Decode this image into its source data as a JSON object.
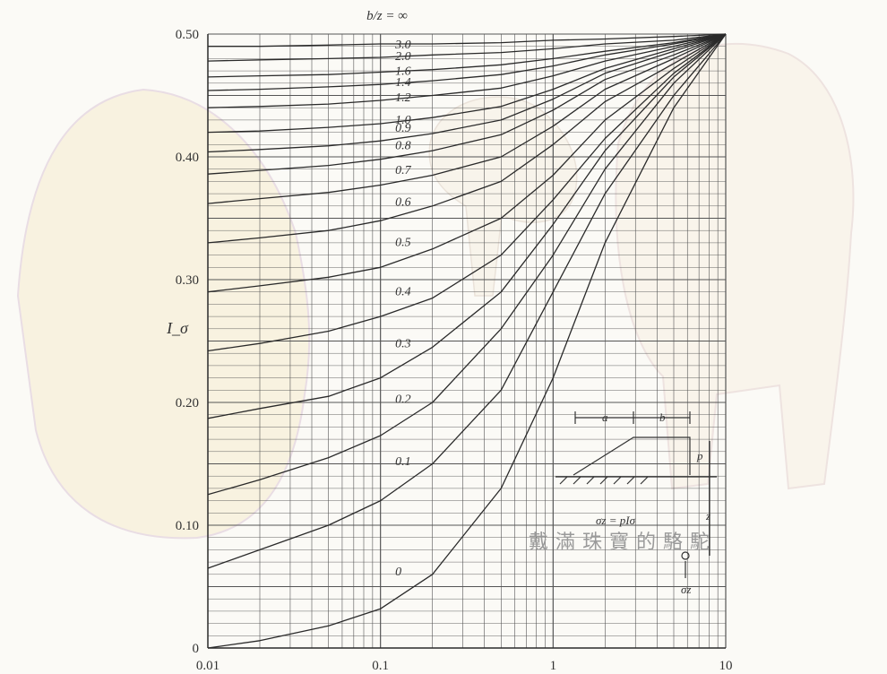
{
  "chart_data": {
    "type": "line",
    "title": "b/z = ∞",
    "ylabel": "I_σ",
    "xlabel": "",
    "x_scale": "log",
    "xlim": [
      0.01,
      10
    ],
    "ylim": [
      0,
      0.5
    ],
    "x_ticks": [
      "0.01",
      "0.1",
      "1",
      "10"
    ],
    "y_ticks": [
      "0",
      "0.10",
      "0.20",
      "0.30",
      "0.40",
      "0.50"
    ],
    "grid": true,
    "series": [
      {
        "name": "0",
        "x": [
          0.01,
          0.02,
          0.05,
          0.1,
          0.2,
          0.5,
          1,
          2,
          5,
          10
        ],
        "y": [
          0.0,
          0.006,
          0.018,
          0.032,
          0.06,
          0.13,
          0.22,
          0.33,
          0.44,
          0.5
        ]
      },
      {
        "name": "0.1",
        "x": [
          0.01,
          0.02,
          0.05,
          0.1,
          0.2,
          0.5,
          1,
          2,
          5,
          10
        ],
        "y": [
          0.065,
          0.08,
          0.1,
          0.12,
          0.15,
          0.21,
          0.29,
          0.37,
          0.45,
          0.5
        ]
      },
      {
        "name": "0.2",
        "x": [
          0.01,
          0.02,
          0.05,
          0.1,
          0.2,
          0.5,
          1,
          2,
          5,
          10
        ],
        "y": [
          0.125,
          0.137,
          0.155,
          0.173,
          0.2,
          0.26,
          0.32,
          0.39,
          0.46,
          0.5
        ]
      },
      {
        "name": "0.3",
        "x": [
          0.01,
          0.02,
          0.05,
          0.1,
          0.2,
          0.5,
          1,
          2,
          5,
          10
        ],
        "y": [
          0.187,
          0.195,
          0.205,
          0.22,
          0.245,
          0.29,
          0.345,
          0.405,
          0.465,
          0.5
        ]
      },
      {
        "name": "0.4",
        "x": [
          0.01,
          0.02,
          0.05,
          0.1,
          0.2,
          0.5,
          1,
          2,
          5,
          10
        ],
        "y": [
          0.242,
          0.248,
          0.258,
          0.27,
          0.285,
          0.32,
          0.365,
          0.415,
          0.468,
          0.5
        ]
      },
      {
        "name": "0.5",
        "x": [
          0.01,
          0.02,
          0.05,
          0.1,
          0.2,
          0.5,
          1,
          2,
          5,
          10
        ],
        "y": [
          0.29,
          0.295,
          0.302,
          0.31,
          0.325,
          0.35,
          0.385,
          0.43,
          0.472,
          0.5
        ]
      },
      {
        "name": "0.6",
        "x": [
          0.01,
          0.02,
          0.05,
          0.1,
          0.2,
          0.5,
          1,
          2,
          5,
          10
        ],
        "y": [
          0.33,
          0.334,
          0.34,
          0.348,
          0.36,
          0.38,
          0.41,
          0.445,
          0.476,
          0.5
        ]
      },
      {
        "name": "0.7",
        "x": [
          0.01,
          0.02,
          0.05,
          0.1,
          0.2,
          0.5,
          1,
          2,
          5,
          10
        ],
        "y": [
          0.362,
          0.366,
          0.371,
          0.377,
          0.385,
          0.4,
          0.425,
          0.455,
          0.48,
          0.5
        ]
      },
      {
        "name": "0.8",
        "x": [
          0.01,
          0.02,
          0.05,
          0.1,
          0.2,
          0.5,
          1,
          2,
          5,
          10
        ],
        "y": [
          0.386,
          0.389,
          0.393,
          0.398,
          0.405,
          0.418,
          0.438,
          0.463,
          0.483,
          0.5
        ]
      },
      {
        "name": "0.9",
        "x": [
          0.01,
          0.02,
          0.05,
          0.1,
          0.2,
          0.5,
          1,
          2,
          5,
          10
        ],
        "y": [
          0.404,
          0.406,
          0.409,
          0.413,
          0.419,
          0.43,
          0.447,
          0.468,
          0.486,
          0.5
        ]
      },
      {
        "name": "1.0",
        "x": [
          0.01,
          0.02,
          0.05,
          0.1,
          0.2,
          0.5,
          1,
          2,
          5,
          10
        ],
        "y": [
          0.42,
          0.421,
          0.424,
          0.427,
          0.432,
          0.441,
          0.455,
          0.472,
          0.488,
          0.5
        ]
      },
      {
        "name": "1.2",
        "x": [
          0.01,
          0.02,
          0.05,
          0.1,
          0.2,
          0.5,
          1,
          2,
          5,
          10
        ],
        "y": [
          0.44,
          0.441,
          0.443,
          0.446,
          0.45,
          0.456,
          0.466,
          0.478,
          0.49,
          0.5
        ]
      },
      {
        "name": "1.4",
        "x": [
          0.01,
          0.02,
          0.05,
          0.1,
          0.2,
          0.5,
          1,
          2,
          5,
          10
        ],
        "y": [
          0.454,
          0.455,
          0.457,
          0.459,
          0.462,
          0.467,
          0.474,
          0.483,
          0.492,
          0.5
        ]
      },
      {
        "name": "1.6",
        "x": [
          0.01,
          0.02,
          0.05,
          0.1,
          0.2,
          0.5,
          1,
          2,
          5,
          10
        ],
        "y": [
          0.465,
          0.466,
          0.467,
          0.469,
          0.471,
          0.475,
          0.48,
          0.486,
          0.493,
          0.5
        ]
      },
      {
        "name": "2.0",
        "x": [
          0.01,
          0.02,
          0.05,
          0.1,
          0.2,
          0.5,
          1,
          2,
          5,
          10
        ],
        "y": [
          0.478,
          0.479,
          0.48,
          0.481,
          0.483,
          0.485,
          0.488,
          0.492,
          0.495,
          0.5
        ]
      },
      {
        "name": "3.0",
        "x": [
          0.01,
          0.02,
          0.05,
          0.1,
          0.2,
          0.5,
          1,
          2,
          5,
          10
        ],
        "y": [
          0.49,
          0.49,
          0.491,
          0.492,
          0.492,
          0.493,
          0.495,
          0.496,
          0.498,
          0.5
        ]
      }
    ],
    "inset": {
      "labels": {
        "a": "a",
        "b": "b",
        "p": "p",
        "z": "z",
        "sigma_z": "σz"
      },
      "formula": "σz = pIσ"
    },
    "watermark": "戴滿珠寶的駱駝"
  },
  "colors": {
    "line": "#2a2a2a",
    "grid": "#555555",
    "background": "#fbfaf6"
  }
}
